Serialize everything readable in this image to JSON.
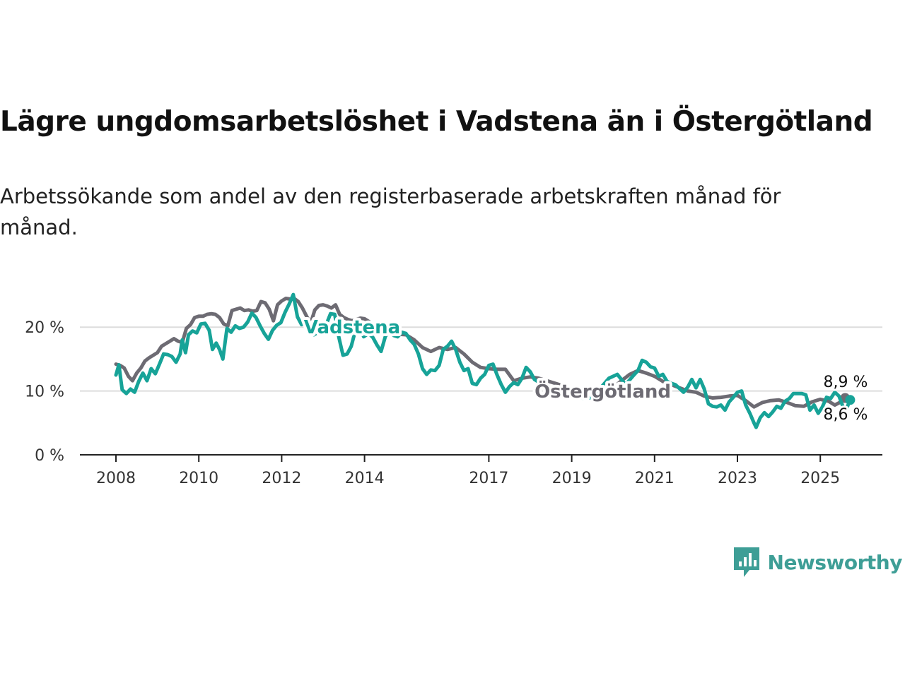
{
  "title": "Lägre ungdomsarbetslöshet i Vadstena än i Östergötland",
  "subtitle": "Arbetssökande som andel av den registerbaserade arbetskraften månad för månad.",
  "brand": {
    "name": "Newsworthy",
    "icon": "newsworthy-logo-icon",
    "color": "#3e9e96"
  },
  "colors": {
    "vadstena": "#17a398",
    "ostergotland": "#6d6b73",
    "grid": "#dddddd",
    "axis": "#222222"
  },
  "chart_data": {
    "type": "line",
    "xlim": [
      2008,
      2025.9
    ],
    "ylim": [
      0,
      25
    ],
    "yticks": [
      {
        "value": 0,
        "label": "0 %"
      },
      {
        "value": 10,
        "label": "10 %"
      },
      {
        "value": 20,
        "label": "20 %"
      }
    ],
    "xticks": [
      {
        "value": 2008,
        "label": "2008"
      },
      {
        "value": 2010,
        "label": "2010"
      },
      {
        "value": 2012,
        "label": "2012"
      },
      {
        "value": 2014,
        "label": "2014"
      },
      {
        "value": 2017,
        "label": "2017"
      },
      {
        "value": 2019,
        "label": "2019"
      },
      {
        "value": 2021,
        "label": "2021"
      },
      {
        "value": 2023,
        "label": "2023"
      },
      {
        "value": 2025,
        "label": "2025"
      }
    ],
    "grid": true,
    "series": [
      {
        "name": "Östergötland",
        "color": "#6d6b73",
        "end_label": "8,9 %",
        "points": [
          [
            2008.0,
            14.2
          ],
          [
            2008.1,
            14.0
          ],
          [
            2008.2,
            13.6
          ],
          [
            2008.3,
            12.3
          ],
          [
            2008.4,
            11.6
          ],
          [
            2008.5,
            12.8
          ],
          [
            2008.6,
            13.6
          ],
          [
            2008.7,
            14.7
          ],
          [
            2008.8,
            15.2
          ],
          [
            2008.9,
            15.6
          ],
          [
            2009.0,
            16.0
          ],
          [
            2009.1,
            17.0
          ],
          [
            2009.2,
            17.4
          ],
          [
            2009.3,
            17.8
          ],
          [
            2009.4,
            18.2
          ],
          [
            2009.5,
            17.8
          ],
          [
            2009.6,
            17.6
          ],
          [
            2009.7,
            19.8
          ],
          [
            2009.8,
            20.4
          ],
          [
            2009.9,
            21.5
          ],
          [
            2010.0,
            21.7
          ],
          [
            2010.1,
            21.7
          ],
          [
            2010.2,
            22.0
          ],
          [
            2010.3,
            22.1
          ],
          [
            2010.4,
            22.0
          ],
          [
            2010.5,
            21.5
          ],
          [
            2010.6,
            20.5
          ],
          [
            2010.7,
            20.2
          ],
          [
            2010.8,
            22.6
          ],
          [
            2010.9,
            22.8
          ],
          [
            2011.0,
            23.0
          ],
          [
            2011.1,
            22.6
          ],
          [
            2011.2,
            22.7
          ],
          [
            2011.3,
            22.5
          ],
          [
            2011.4,
            22.6
          ],
          [
            2011.5,
            24.0
          ],
          [
            2011.6,
            23.8
          ],
          [
            2011.7,
            22.8
          ],
          [
            2011.8,
            21.0
          ],
          [
            2011.9,
            23.5
          ],
          [
            2012.0,
            24.1
          ],
          [
            2012.1,
            24.5
          ],
          [
            2012.2,
            24.4
          ],
          [
            2012.3,
            24.5
          ],
          [
            2012.4,
            24.0
          ],
          [
            2012.5,
            23.0
          ],
          [
            2012.6,
            21.7
          ],
          [
            2012.7,
            20.6
          ],
          [
            2012.8,
            22.7
          ],
          [
            2012.9,
            23.4
          ],
          [
            2013.0,
            23.5
          ],
          [
            2013.1,
            23.3
          ],
          [
            2013.2,
            23.0
          ],
          [
            2013.3,
            23.5
          ],
          [
            2013.4,
            22.0
          ],
          [
            2013.5,
            21.5
          ],
          [
            2013.6,
            21.2
          ],
          [
            2013.7,
            21.0
          ],
          [
            2013.8,
            21.2
          ],
          [
            2013.9,
            21.4
          ],
          [
            2014.0,
            21.3
          ],
          [
            2014.2,
            20.5
          ],
          [
            2014.4,
            19.6
          ],
          [
            2014.6,
            19.2
          ],
          [
            2014.8,
            18.9
          ],
          [
            2015.0,
            18.8
          ],
          [
            2015.2,
            18.0
          ],
          [
            2015.4,
            16.8
          ],
          [
            2015.6,
            16.2
          ],
          [
            2015.8,
            16.8
          ],
          [
            2016.0,
            16.5
          ],
          [
            2016.2,
            16.8
          ],
          [
            2016.4,
            15.8
          ],
          [
            2016.6,
            14.5
          ],
          [
            2016.8,
            13.7
          ],
          [
            2017.0,
            13.5
          ],
          [
            2017.2,
            13.4
          ],
          [
            2017.4,
            13.4
          ],
          [
            2017.6,
            11.6
          ],
          [
            2017.8,
            12.0
          ],
          [
            2018.0,
            12.2
          ],
          [
            2018.2,
            12.0
          ],
          [
            2018.4,
            11.6
          ],
          [
            2018.6,
            11.2
          ],
          [
            2018.8,
            10.8
          ],
          [
            2019.0,
            10.3
          ],
          [
            2019.2,
            9.8
          ],
          [
            2019.4,
            9.4
          ],
          [
            2019.6,
            9.0
          ],
          [
            2019.8,
            9.6
          ],
          [
            2020.0,
            10.5
          ],
          [
            2020.2,
            11.6
          ],
          [
            2020.4,
            12.6
          ],
          [
            2020.6,
            13.2
          ],
          [
            2020.8,
            12.8
          ],
          [
            2021.0,
            12.3
          ],
          [
            2021.2,
            11.5
          ],
          [
            2021.4,
            11.0
          ],
          [
            2021.6,
            10.5
          ],
          [
            2021.8,
            10.0
          ],
          [
            2022.0,
            9.8
          ],
          [
            2022.2,
            9.2
          ],
          [
            2022.4,
            8.9
          ],
          [
            2022.6,
            9.0
          ],
          [
            2022.8,
            9.2
          ],
          [
            2023.0,
            9.3
          ],
          [
            2023.2,
            8.5
          ],
          [
            2023.4,
            7.5
          ],
          [
            2023.6,
            8.2
          ],
          [
            2023.8,
            8.5
          ],
          [
            2024.0,
            8.6
          ],
          [
            2024.2,
            8.2
          ],
          [
            2024.4,
            7.7
          ],
          [
            2024.6,
            7.6
          ],
          [
            2024.8,
            8.3
          ],
          [
            2025.0,
            8.7
          ],
          [
            2025.2,
            8.4
          ],
          [
            2025.35,
            7.8
          ],
          [
            2025.5,
            8.3
          ],
          [
            2025.6,
            8.9
          ]
        ]
      },
      {
        "name": "Vadstena",
        "color": "#17a398",
        "end_label": "8,6 %",
        "points": [
          [
            2008.0,
            12.5
          ],
          [
            2008.07,
            14.1
          ],
          [
            2008.15,
            10.2
          ],
          [
            2008.25,
            9.6
          ],
          [
            2008.35,
            10.3
          ],
          [
            2008.45,
            9.8
          ],
          [
            2008.55,
            11.5
          ],
          [
            2008.65,
            12.8
          ],
          [
            2008.75,
            11.6
          ],
          [
            2008.85,
            13.5
          ],
          [
            2008.95,
            12.7
          ],
          [
            2009.05,
            14.2
          ],
          [
            2009.15,
            15.8
          ],
          [
            2009.25,
            15.7
          ],
          [
            2009.35,
            15.4
          ],
          [
            2009.45,
            14.5
          ],
          [
            2009.55,
            15.8
          ],
          [
            2009.6,
            18.0
          ],
          [
            2009.68,
            16.0
          ],
          [
            2009.75,
            18.8
          ],
          [
            2009.85,
            19.4
          ],
          [
            2009.95,
            19.1
          ],
          [
            2010.05,
            20.5
          ],
          [
            2010.15,
            20.6
          ],
          [
            2010.25,
            19.5
          ],
          [
            2010.33,
            16.5
          ],
          [
            2010.42,
            17.5
          ],
          [
            2010.5,
            16.5
          ],
          [
            2010.58,
            15.0
          ],
          [
            2010.68,
            19.8
          ],
          [
            2010.78,
            19.2
          ],
          [
            2010.88,
            20.2
          ],
          [
            2010.98,
            19.8
          ],
          [
            2011.08,
            20.0
          ],
          [
            2011.18,
            20.8
          ],
          [
            2011.28,
            22.2
          ],
          [
            2011.38,
            21.5
          ],
          [
            2011.48,
            20.2
          ],
          [
            2011.58,
            19.0
          ],
          [
            2011.68,
            18.1
          ],
          [
            2011.78,
            19.5
          ],
          [
            2011.88,
            20.3
          ],
          [
            2011.98,
            20.7
          ],
          [
            2012.08,
            22.3
          ],
          [
            2012.18,
            23.6
          ],
          [
            2012.28,
            25.1
          ],
          [
            2012.38,
            21.6
          ],
          [
            2012.48,
            20.4
          ],
          [
            2012.58,
            20.6
          ],
          [
            2012.68,
            19.9
          ],
          [
            2012.78,
            18.8
          ],
          [
            2012.88,
            19.2
          ],
          [
            2012.98,
            19.0
          ],
          [
            2013.08,
            20.5
          ],
          [
            2013.18,
            22.1
          ],
          [
            2013.28,
            22.0
          ],
          [
            2013.38,
            18.4
          ],
          [
            2013.48,
            15.6
          ],
          [
            2013.58,
            15.8
          ],
          [
            2013.68,
            17.0
          ],
          [
            2013.78,
            19.5
          ],
          [
            2013.88,
            20.2
          ],
          [
            2013.98,
            18.5
          ],
          [
            2014.1,
            19.0
          ],
          [
            2014.2,
            18.4
          ],
          [
            2014.3,
            17.2
          ],
          [
            2014.4,
            16.2
          ],
          [
            2014.5,
            18.5
          ],
          [
            2014.6,
            19.5
          ],
          [
            2014.7,
            18.7
          ],
          [
            2014.8,
            18.5
          ],
          [
            2014.9,
            19.2
          ],
          [
            2015.0,
            19.0
          ],
          [
            2015.1,
            18.0
          ],
          [
            2015.2,
            17.3
          ],
          [
            2015.3,
            15.8
          ],
          [
            2015.4,
            13.5
          ],
          [
            2015.5,
            12.6
          ],
          [
            2015.6,
            13.3
          ],
          [
            2015.7,
            13.2
          ],
          [
            2015.8,
            14.0
          ],
          [
            2015.9,
            16.5
          ],
          [
            2016.0,
            17.0
          ],
          [
            2016.1,
            17.8
          ],
          [
            2016.2,
            16.5
          ],
          [
            2016.3,
            14.5
          ],
          [
            2016.4,
            13.2
          ],
          [
            2016.5,
            13.5
          ],
          [
            2016.6,
            11.2
          ],
          [
            2016.7,
            11.0
          ],
          [
            2016.8,
            12.0
          ],
          [
            2016.9,
            12.6
          ],
          [
            2017.0,
            14.0
          ],
          [
            2017.1,
            14.2
          ],
          [
            2017.2,
            12.5
          ],
          [
            2017.3,
            11.0
          ],
          [
            2017.4,
            9.8
          ],
          [
            2017.5,
            10.7
          ],
          [
            2017.6,
            11.3
          ],
          [
            2017.7,
            11.0
          ],
          [
            2017.8,
            12.0
          ],
          [
            2017.9,
            13.7
          ],
          [
            2018.0,
            13.0
          ],
          [
            2018.1,
            11.8
          ],
          [
            2018.3,
            11.0
          ],
          [
            2018.5,
            10.4
          ],
          [
            2018.7,
            10.0
          ],
          [
            2018.9,
            9.5
          ],
          [
            2019.1,
            9.2
          ],
          [
            2019.3,
            8.8
          ],
          [
            2019.5,
            9.0
          ],
          [
            2019.7,
            10.5
          ],
          [
            2019.9,
            12.0
          ],
          [
            2020.1,
            12.6
          ],
          [
            2020.3,
            11.0
          ],
          [
            2020.5,
            12.5
          ],
          [
            2020.6,
            13.2
          ],
          [
            2020.7,
            14.8
          ],
          [
            2020.8,
            14.5
          ],
          [
            2020.9,
            13.8
          ],
          [
            2021.0,
            13.6
          ],
          [
            2021.1,
            12.3
          ],
          [
            2021.2,
            12.6
          ],
          [
            2021.3,
            11.5
          ],
          [
            2021.4,
            11.2
          ],
          [
            2021.5,
            11.0
          ],
          [
            2021.6,
            10.4
          ],
          [
            2021.7,
            9.8
          ],
          [
            2021.8,
            10.6
          ],
          [
            2021.9,
            11.8
          ],
          [
            2022.0,
            10.5
          ],
          [
            2022.1,
            11.8
          ],
          [
            2022.2,
            10.3
          ],
          [
            2022.3,
            8.0
          ],
          [
            2022.4,
            7.6
          ],
          [
            2022.5,
            7.5
          ],
          [
            2022.6,
            7.8
          ],
          [
            2022.7,
            7.0
          ],
          [
            2022.8,
            8.3
          ],
          [
            2022.9,
            9.0
          ],
          [
            2023.0,
            9.8
          ],
          [
            2023.1,
            10.0
          ],
          [
            2023.2,
            7.8
          ],
          [
            2023.3,
            6.5
          ],
          [
            2023.4,
            5.0
          ],
          [
            2023.45,
            4.3
          ],
          [
            2023.55,
            5.8
          ],
          [
            2023.65,
            6.6
          ],
          [
            2023.75,
            6.0
          ],
          [
            2023.85,
            6.7
          ],
          [
            2023.95,
            7.6
          ],
          [
            2024.05,
            7.3
          ],
          [
            2024.15,
            8.4
          ],
          [
            2024.25,
            8.8
          ],
          [
            2024.35,
            9.6
          ],
          [
            2024.45,
            9.6
          ],
          [
            2024.55,
            9.6
          ],
          [
            2024.65,
            9.4
          ],
          [
            2024.75,
            7.0
          ],
          [
            2024.85,
            7.8
          ],
          [
            2024.95,
            6.5
          ],
          [
            2025.05,
            7.5
          ],
          [
            2025.15,
            9.0
          ],
          [
            2025.25,
            8.8
          ],
          [
            2025.35,
            9.8
          ],
          [
            2025.45,
            9.2
          ],
          [
            2025.55,
            7.5
          ],
          [
            2025.6,
            6.8
          ],
          [
            2025.65,
            7.5
          ],
          [
            2025.72,
            8.6
          ]
        ]
      }
    ]
  }
}
